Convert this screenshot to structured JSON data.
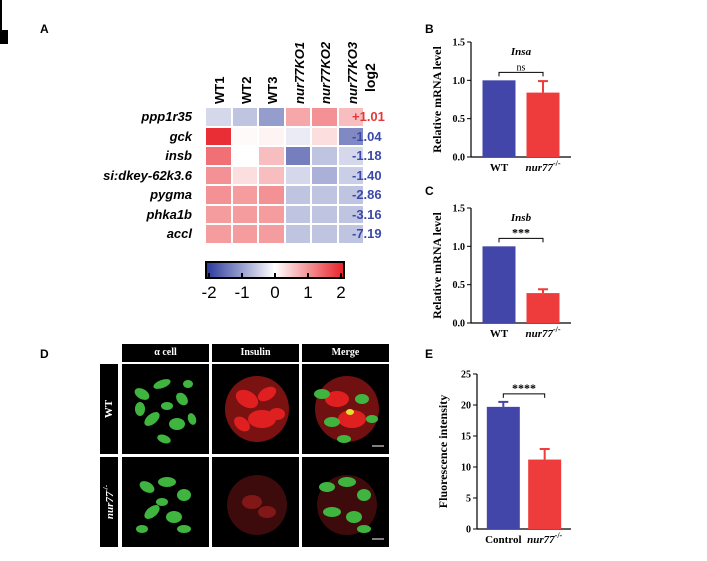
{
  "panels": {
    "A": "A",
    "B": "B",
    "C": "C",
    "D": "D",
    "E": "E"
  },
  "chart_data": [
    {
      "type": "heatmap",
      "columns": [
        "WT1",
        "WT2",
        "WT3",
        "nur77KO1",
        "nur77KO2",
        "nur77KO3"
      ],
      "log_header": "log2",
      "rows": [
        {
          "gene": "ppp1r35",
          "log2": "+1.01",
          "values": [
            -0.4,
            -0.6,
            -1.0,
            0.8,
            1.0,
            0.6
          ]
        },
        {
          "gene": "gck",
          "log2": "-1.04",
          "values": [
            1.9,
            0.05,
            0.1,
            -0.2,
            0.3,
            -1.2
          ]
        },
        {
          "gene": "insb",
          "log2": "-1.18",
          "values": [
            1.3,
            0.0,
            0.6,
            -1.3,
            -0.6,
            -0.4
          ]
        },
        {
          "gene": "si:dkey-62k3.6",
          "log2": "-1.40",
          "values": [
            1.0,
            0.3,
            0.6,
            -0.4,
            -0.8,
            -0.5
          ]
        },
        {
          "gene": "pygma",
          "log2": "-2.86",
          "values": [
            1.0,
            0.9,
            1.0,
            -0.6,
            -0.6,
            -0.6
          ]
        },
        {
          "gene": "phka1b",
          "log2": "-3.16",
          "values": [
            0.9,
            0.9,
            0.9,
            -0.6,
            -0.6,
            -0.6
          ]
        },
        {
          "gene": "accl",
          "log2": "-7.19",
          "values": [
            0.9,
            0.9,
            0.9,
            -0.6,
            -0.6,
            -0.6
          ]
        }
      ],
      "colorbar": {
        "ticks": [
          "-2",
          "-1",
          "0",
          "1",
          "2"
        ],
        "range": [
          -2,
          2
        ],
        "low_color": "#2b3a9b",
        "mid_color": "#ffffff",
        "high_color": "#e8232a"
      },
      "log2_colors": {
        "positive": "#e23a3a",
        "negative": "#3b4aa8"
      }
    },
    {
      "type": "bar",
      "title": "Insa",
      "ylabel": "Relative mRNA level",
      "categories": [
        "WT",
        "nur77"
      ],
      "category_superscript": [
        "",
        "-/-"
      ],
      "values": [
        1.0,
        0.84
      ],
      "errors": [
        0.0,
        0.15
      ],
      "yticks": [
        "0.0",
        "0.5",
        "1.0",
        "1.5"
      ],
      "ylim": [
        0,
        1.5
      ],
      "significance": "ns",
      "colors": [
        "#4146a8",
        "#ee3b3b"
      ]
    },
    {
      "type": "bar",
      "title": "Insb",
      "ylabel": "Relative mRNA level",
      "categories": [
        "WT",
        "nur77"
      ],
      "category_superscript": [
        "",
        "-/-"
      ],
      "values": [
        1.0,
        0.39
      ],
      "errors": [
        0.0,
        0.05
      ],
      "yticks": [
        "0.0",
        "0.5",
        "1.0",
        "1.5"
      ],
      "ylim": [
        0,
        1.5
      ],
      "significance": "***",
      "colors": [
        "#4146a8",
        "#ee3b3b"
      ]
    },
    {
      "type": "bar",
      "title": "",
      "ylabel": "Fluorescence intensity",
      "categories": [
        "Control",
        "nur77"
      ],
      "category_superscript": [
        "",
        "-/-"
      ],
      "values": [
        19.7,
        11.2
      ],
      "errors": [
        0.8,
        1.7
      ],
      "yticks": [
        "0",
        "5",
        "10",
        "15",
        "20",
        "25"
      ],
      "ylim": [
        0,
        25
      ],
      "significance": "****",
      "colors": [
        "#4146a8",
        "#ee3b3b"
      ]
    }
  ],
  "microscopy": {
    "columns": [
      "α cell",
      "Insulin",
      "Merge"
    ],
    "rows": [
      {
        "label": "WT",
        "suffix": ""
      },
      {
        "label": "nur77",
        "suffix": "-/-"
      }
    ]
  }
}
